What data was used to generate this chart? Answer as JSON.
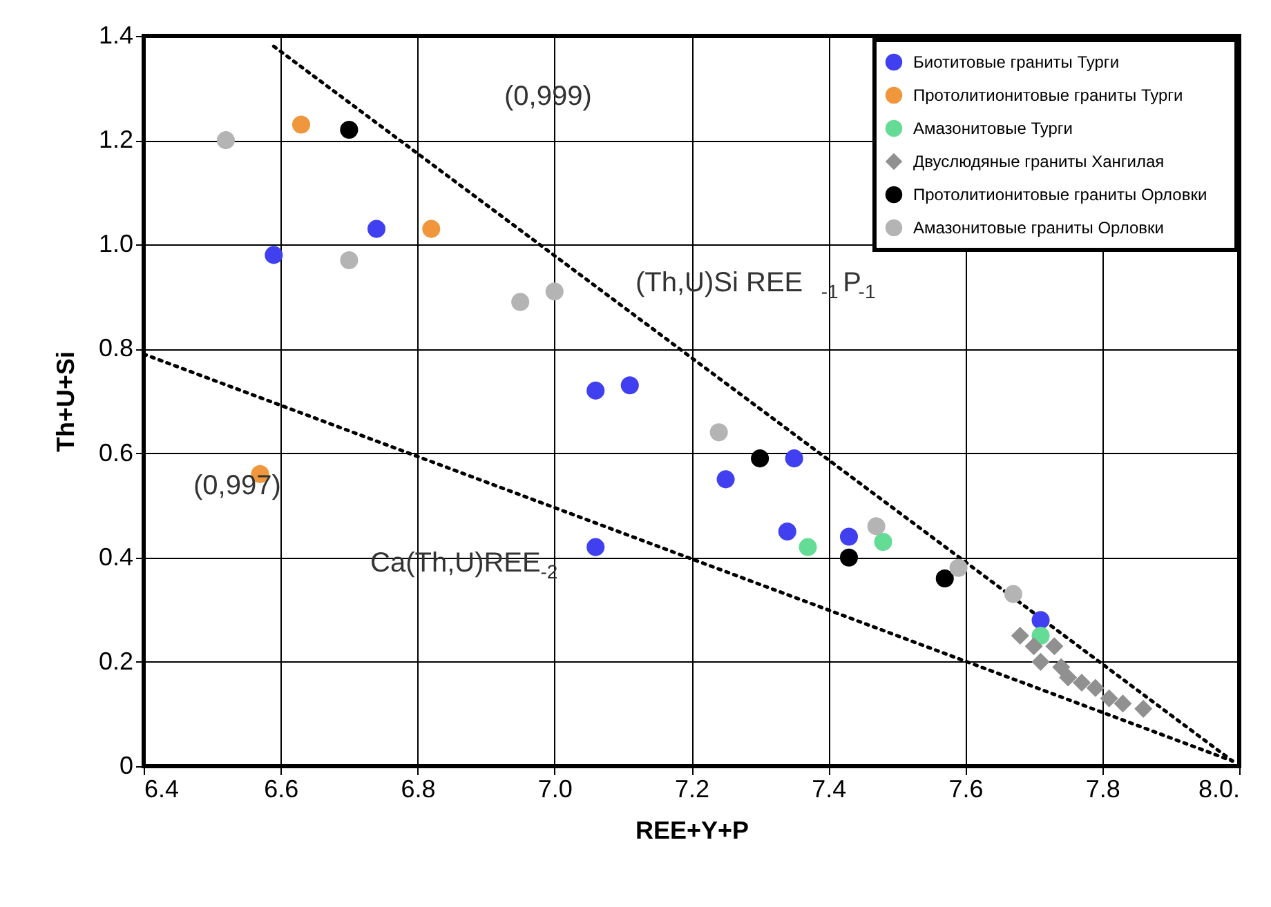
{
  "chart_data": {
    "type": "scatter",
    "xlabel": "REE+Y+P",
    "ylabel": "Th+U+Si",
    "xlim": [
      6.4,
      8.0
    ],
    "ylim": [
      0,
      1.4
    ],
    "xticks": [
      6.4,
      6.6,
      6.8,
      {
        "value": 7.0,
        "label": "7.0"
      },
      7.2,
      7.4,
      7.6,
      7.8,
      {
        "value": 8.0,
        "label": "8.0."
      }
    ],
    "yticks": [
      {
        "value": 0,
        "label": "0"
      },
      0.2,
      0.4,
      0.6,
      0.8,
      {
        "value": 1.0,
        "label": "1.0"
      },
      1.2,
      1.4
    ],
    "grid": true,
    "legend": "top right",
    "annotations": [
      "(0,999)",
      "(Th,U)Si REE$_{-1}$P$_{-1}$",
      "(0,997)",
      "Ca(Th,U)REE$_{-2}$"
    ],
    "series": [
      {
        "type": "line",
        "line_style": "dotted",
        "color": "#000000",
        "x": [
          6.59,
          7.99
        ],
        "values": [
          1.38,
          0.01
        ]
      },
      {
        "type": "line",
        "line_style": "dotted",
        "color": "#000000",
        "x": [
          6.4,
          7.99
        ],
        "values": [
          0.79,
          0.01
        ]
      },
      {
        "name": "Биотитовые граниты Турги",
        "color": "#4040f0",
        "marker": "circle",
        "x": [
          6.59,
          6.74,
          7.06,
          7.11,
          7.25,
          7.35,
          7.06,
          7.34,
          7.43,
          7.71
        ],
        "values": [
          0.98,
          1.03,
          0.72,
          0.73,
          0.55,
          0.59,
          0.42,
          0.45,
          0.44,
          0.28
        ]
      },
      {
        "name": "Протолитионитовые граниты Турги",
        "color": "#f0963c",
        "marker": "circle",
        "x": [
          6.63,
          6.82,
          6.57
        ],
        "values": [
          1.23,
          1.03,
          0.56
        ]
      },
      {
        "name": "Амазонитовые Турги",
        "color": "#64dc96",
        "marker": "circle",
        "x": [
          7.37,
          7.48,
          7.71
        ],
        "values": [
          0.42,
          0.43,
          0.25
        ]
      },
      {
        "name": "Двуслюдяные граниты Хангилая",
        "color": "#909090",
        "marker": "diamond",
        "x": [
          7.68,
          7.7,
          7.71,
          7.73,
          7.74,
          7.75,
          7.77,
          7.79,
          7.81,
          7.83,
          7.86
        ],
        "values": [
          0.25,
          0.23,
          0.2,
          0.23,
          0.19,
          0.17,
          0.16,
          0.15,
          0.13,
          0.12,
          0.11
        ]
      },
      {
        "name": "Протолитионитовые граниты Орловки",
        "color": "#000000",
        "marker": "circle",
        "x": [
          6.7,
          7.3,
          7.43,
          7.57
        ],
        "values": [
          1.22,
          0.59,
          0.4,
          0.36
        ]
      },
      {
        "name": "Амазонитовые граниты Орловки",
        "color": "#b4b4b4",
        "marker": "circle",
        "x": [
          6.52,
          6.7,
          6.95,
          7.0,
          7.24,
          7.47,
          7.59,
          7.67
        ],
        "values": [
          1.2,
          0.97,
          0.89,
          0.91,
          0.64,
          0.46,
          0.38,
          0.33
        ]
      }
    ]
  }
}
